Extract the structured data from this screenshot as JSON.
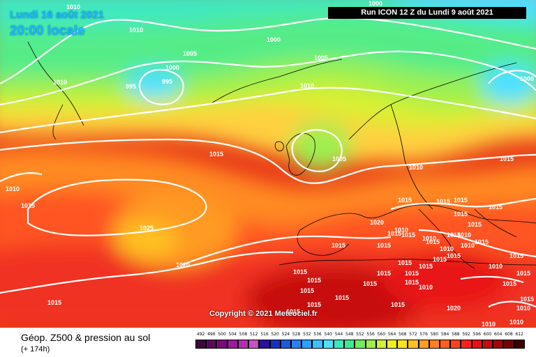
{
  "header": {
    "date": "Lundi 16 août 2021",
    "time": "20:00 locale",
    "run": "Run ICON 12 Z du Lundi 9 août 2021"
  },
  "copyright": "Copyright © 2021 Meteociel.fr",
  "footer": {
    "title": "Géop. Z500 & pression au sol",
    "subtitle": "(+ 174h)"
  },
  "legend": {
    "ticks": [
      "492",
      "496",
      "500",
      "504",
      "508",
      "512",
      "516",
      "520",
      "524",
      "528",
      "532",
      "536",
      "540",
      "544",
      "548",
      "552",
      "556",
      "560",
      "564",
      "568",
      "572",
      "576",
      "580",
      "584",
      "588",
      "592",
      "596",
      "600",
      "604",
      "608",
      "612"
    ],
    "colors": [
      "#3b0a3b",
      "#5a0a5a",
      "#7a0a7a",
      "#9a1a9a",
      "#b030b0",
      "#c850c8",
      "#2a10a0",
      "#1830c0",
      "#1f58e0",
      "#2a80f0",
      "#30a0ff",
      "#40c0ff",
      "#50e0ff",
      "#40e8c0",
      "#40e890",
      "#70ec60",
      "#a0ee50",
      "#d0f030",
      "#f0f020",
      "#ffe020",
      "#ffc020",
      "#ffa020",
      "#ff8020",
      "#ff6020",
      "#ff4020",
      "#ff2020",
      "#e81010",
      "#c80a0a",
      "#a00808",
      "#700404",
      "#3a0000"
    ]
  },
  "map": {
    "isobar_labels": [
      "1010",
      "1005",
      "1000",
      "995",
      "995",
      "1000",
      "1010",
      "1010",
      "1005",
      "1010",
      "1000",
      "1000",
      "1015",
      "1005",
      "1010",
      "1015",
      "1025",
      "1015",
      "1020",
      "1010",
      "1015",
      "1015",
      "1015",
      "1015",
      "1015",
      "1015",
      "1015",
      "1015",
      "1015",
      "1015",
      "1015",
      "1015",
      "1015",
      "1015",
      "1015",
      "1015",
      "1015",
      "1015",
      "1020",
      "1010",
      "1010",
      "1010",
      "1015",
      "1015",
      "1015",
      "1015",
      "1010",
      "1010",
      "1010",
      "1015",
      "1015",
      "1015",
      "1015",
      "1020",
      "1015",
      "1015",
      "1015",
      "1015",
      "1015",
      "1015",
      "1015",
      "1010",
      "1010",
      "1010",
      "1010"
    ]
  }
}
